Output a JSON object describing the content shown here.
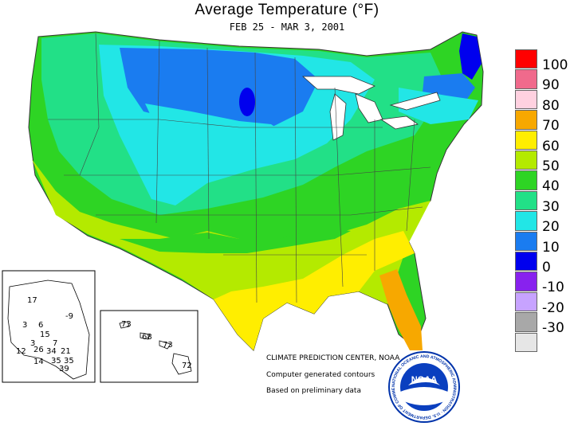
{
  "header": {
    "title": "Average Temperature (°F)",
    "subtitle": "FEB 25  -  MAR  3, 2001"
  },
  "legend": {
    "items": [
      {
        "label": "100",
        "color": "#ff0000"
      },
      {
        "label": "90",
        "color": "#f06a8c"
      },
      {
        "label": "80",
        "color": "#ffd1e0"
      },
      {
        "label": "70",
        "color": "#f7a800"
      },
      {
        "label": "60",
        "color": "#ffee00"
      },
      {
        "label": "50",
        "color": "#b4ea00"
      },
      {
        "label": "40",
        "color": "#2ed424"
      },
      {
        "label": "30",
        "color": "#22e087"
      },
      {
        "label": "20",
        "color": "#22e6e6"
      },
      {
        "label": "10",
        "color": "#1a7cf0"
      },
      {
        "label": "0",
        "color": "#0000ee"
      },
      {
        "label": "-10",
        "color": "#8822ee"
      },
      {
        "label": "-20",
        "color": "#c7a3ff"
      },
      {
        "label": "-30",
        "color": "#a8a8a8"
      },
      {
        "label": "",
        "color": "#e6e6e6"
      }
    ]
  },
  "credits": {
    "line1": "CLIMATE PREDICTION CENTER, NOAA",
    "line2": "Computer generated contours",
    "line3": "Based on preliminary data"
  },
  "alaska_labels": [
    "17",
    "-9",
    "3",
    "6",
    "15",
    "3",
    "7",
    "12",
    "26",
    "34",
    "21",
    "14",
    "35",
    "35",
    "39"
  ],
  "hawaii_labels": [
    "73",
    "68",
    "73",
    "72"
  ],
  "logo": {
    "text": "NOAA",
    "ring_text": "NATIONAL OCEANIC AND ATMOSPHERIC ADMINISTRATION · U.S. DEPARTMENT OF COMMERCE"
  }
}
